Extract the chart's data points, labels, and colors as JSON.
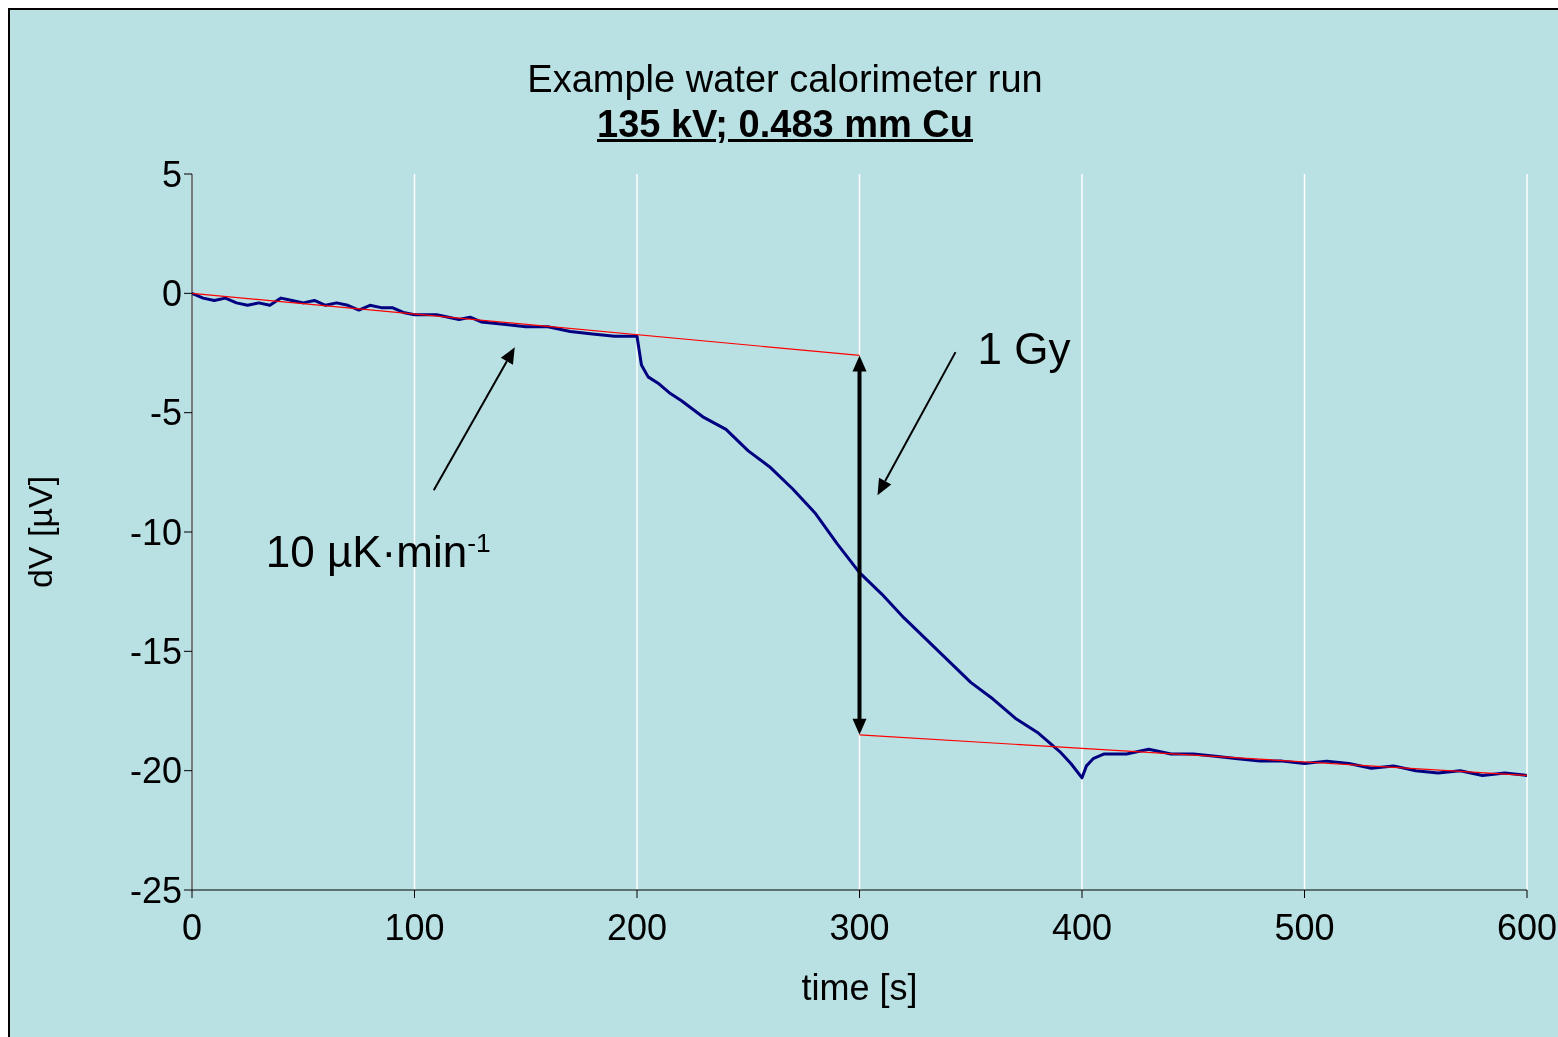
{
  "chart_data": {
    "type": "line",
    "title": "Example water calorimeter run",
    "subtitle": "135 kV; 0.483 mm Cu",
    "xlabel": "time [s]",
    "ylabel": "dV [µV]",
    "xlim": [
      0,
      600
    ],
    "xticks": [
      0,
      100,
      200,
      300,
      400,
      500,
      600
    ],
    "ylim": [
      -25,
      5
    ],
    "yticks": [
      -25,
      -20,
      -15,
      -10,
      -5,
      0,
      5
    ],
    "grid": "x",
    "marker": "none",
    "line_style": "solid",
    "series": [
      {
        "color": "#000080",
        "x": [
          0,
          5,
          10,
          15,
          20,
          25,
          30,
          35,
          40,
          45,
          50,
          55,
          60,
          65,
          70,
          75,
          80,
          85,
          90,
          95,
          100,
          110,
          120,
          125,
          130,
          140,
          150,
          160,
          170,
          180,
          190,
          195,
          200,
          202,
          205,
          210,
          215,
          220,
          230,
          240,
          250,
          260,
          270,
          280,
          290,
          300,
          310,
          320,
          330,
          340,
          350,
          360,
          370,
          380,
          390,
          395,
          400,
          402,
          405,
          410,
          420,
          430,
          440,
          450,
          460,
          470,
          480,
          490,
          500,
          510,
          520,
          530,
          540,
          550,
          560,
          570,
          580,
          590,
          600
        ],
        "values": [
          0,
          -0.2,
          -0.3,
          -0.2,
          -0.4,
          -0.5,
          -0.4,
          -0.5,
          -0.2,
          -0.3,
          -0.4,
          -0.3,
          -0.5,
          -0.4,
          -0.5,
          -0.7,
          -0.5,
          -0.6,
          -0.6,
          -0.8,
          -0.9,
          -0.9,
          -1.1,
          -1.0,
          -1.2,
          -1.3,
          -1.4,
          -1.4,
          -1.6,
          -1.7,
          -1.8,
          -1.8,
          -1.8,
          -3.0,
          -3.5,
          -3.8,
          -4.2,
          -4.5,
          -5.2,
          -5.7,
          -6.6,
          -7.3,
          -8.2,
          -9.2,
          -10.5,
          -11.7,
          -12.6,
          -13.6,
          -14.5,
          -15.4,
          -16.3,
          -17.0,
          -17.8,
          -18.4,
          -19.2,
          -19.7,
          -20.3,
          -19.8,
          -19.5,
          -19.3,
          -19.3,
          -19.1,
          -19.3,
          -19.3,
          -19.4,
          -19.5,
          -19.6,
          -19.6,
          -19.7,
          -19.6,
          -19.7,
          -19.9,
          -19.8,
          -20.0,
          -20.1,
          -20.0,
          -20.2,
          -20.1,
          -20.2
        ]
      },
      {
        "type": "line",
        "color": "#ff0000",
        "x": [
          0,
          300
        ],
        "values": [
          0,
          -2.6
        ]
      },
      {
        "type": "line",
        "color": "#ff0000",
        "x": [
          300,
          600
        ],
        "values": [
          -18.5,
          -20.2
        ]
      }
    ],
    "annotations": [
      "1 Gy",
      "10 µK·min$^{-1}$"
    ]
  }
}
